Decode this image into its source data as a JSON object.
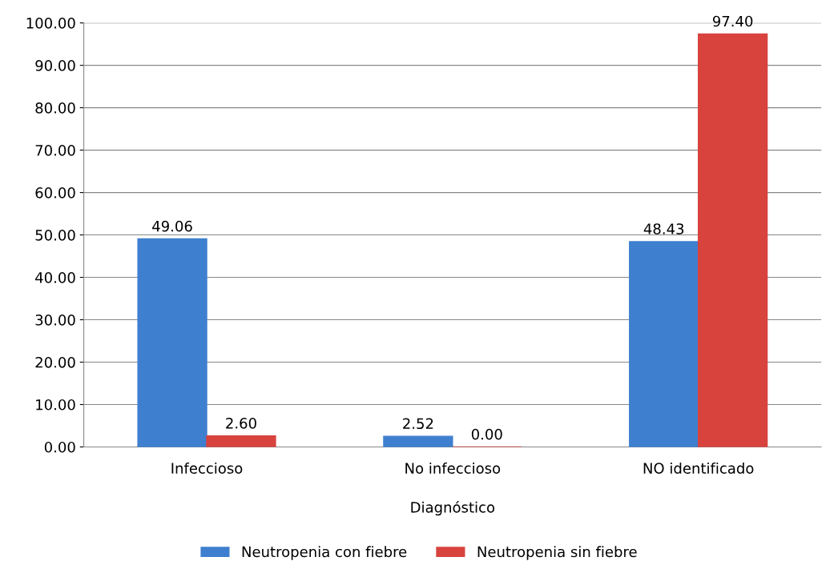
{
  "chart_data": {
    "type": "bar",
    "xlabel": "Diagnóstico",
    "categories": [
      "Infeccioso",
      "No infeccioso",
      "NO identificado"
    ],
    "series": [
      {
        "name": "Neutropenia con fiebre",
        "color": "#3f7fcf",
        "values": [
          49.06,
          2.52,
          48.43
        ],
        "value_labels": [
          "49.06",
          "2.52",
          "48.43"
        ]
      },
      {
        "name": "Neutropenia sin fiebre",
        "color": "#d8433e",
        "values": [
          2.6,
          0.0,
          97.4
        ],
        "value_labels": [
          "2.60",
          "0.00",
          "97.40"
        ]
      }
    ],
    "ylim": [
      0,
      100
    ],
    "yticks": [
      {
        "value": 0,
        "label": "0.00"
      },
      {
        "value": 10,
        "label": "10.00"
      },
      {
        "value": 20,
        "label": "20.00"
      },
      {
        "value": 30,
        "label": "30.00"
      },
      {
        "value": 40,
        "label": "40.00"
      },
      {
        "value": 50,
        "label": "50.00"
      },
      {
        "value": 60,
        "label": "60.00"
      },
      {
        "value": 70,
        "label": "70.00"
      },
      {
        "value": 80,
        "label": "80.00"
      },
      {
        "value": 90,
        "label": "90.00"
      },
      {
        "value": 100,
        "label": "100.00"
      }
    ],
    "grid": "y",
    "legend": "bottom"
  }
}
